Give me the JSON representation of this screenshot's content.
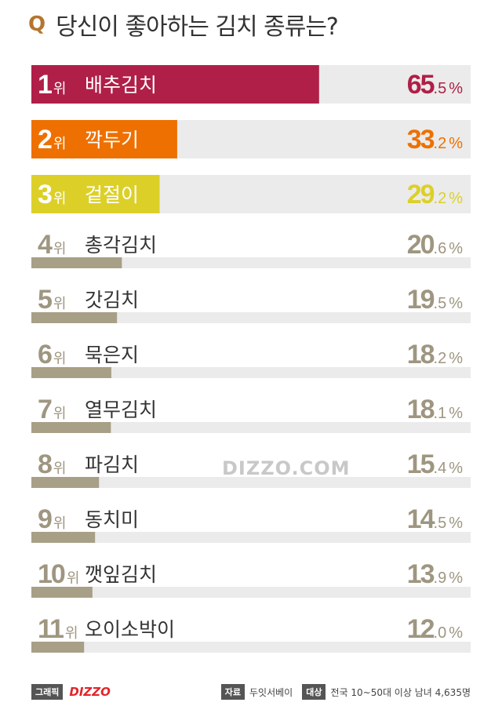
{
  "title": {
    "q": "Q",
    "text": "당신이 좋아하는 김치 종류는?"
  },
  "chart_data": {
    "type": "bar",
    "orientation": "horizontal",
    "unit": "%",
    "rank_suffix": "위",
    "xlim": [
      0,
      100
    ],
    "items": [
      {
        "rank": "1",
        "name": "배추김치",
        "int": "65",
        "dec": ".5",
        "value": 65.5,
        "color": "#b01f48",
        "style": "filled"
      },
      {
        "rank": "2",
        "name": "깍두기",
        "int": "33",
        "dec": ".2",
        "value": 33.2,
        "color": "#ee7000",
        "style": "filled"
      },
      {
        "rank": "3",
        "name": "겉절이",
        "int": "29",
        "dec": ".2",
        "value": 29.2,
        "color": "#dcd028",
        "style": "filled"
      },
      {
        "rank": "4",
        "name": "총각김치",
        "int": "20",
        "dec": ".6",
        "value": 20.6,
        "color": "#a89f87",
        "style": "thin"
      },
      {
        "rank": "5",
        "name": "갓김치",
        "int": "19",
        "dec": ".5",
        "value": 19.5,
        "color": "#a89f87",
        "style": "thin"
      },
      {
        "rank": "6",
        "name": "묵은지",
        "int": "18",
        "dec": ".2",
        "value": 18.2,
        "color": "#a89f87",
        "style": "thin"
      },
      {
        "rank": "7",
        "name": "열무김치",
        "int": "18",
        "dec": ".1",
        "value": 18.1,
        "color": "#a89f87",
        "style": "thin"
      },
      {
        "rank": "8",
        "name": "파김치",
        "int": "15",
        "dec": ".4",
        "value": 15.4,
        "color": "#a89f87",
        "style": "thin"
      },
      {
        "rank": "9",
        "name": "동치미",
        "int": "14",
        "dec": ".5",
        "value": 14.5,
        "color": "#a89f87",
        "style": "thin"
      },
      {
        "rank": "10",
        "name": "깻잎김치",
        "int": "13",
        "dec": ".9",
        "value": 13.9,
        "color": "#a89f87",
        "style": "thin"
      },
      {
        "rank": "11",
        "name": "오이소박이",
        "int": "12",
        "dec": ".0",
        "value": 12.0,
        "color": "#a89f87",
        "style": "thin"
      }
    ]
  },
  "watermark": "DIZZO.COM",
  "footer": {
    "graphic_label": "그래픽",
    "brand": "DIZZO",
    "source_label": "자료",
    "source": "두잇서베이",
    "target_label": "대상",
    "target": "전국 10~50대 이상 남녀 4,635명"
  },
  "colors": {
    "track": "#ebebeb",
    "text_dark": "#333333",
    "rank_gray": "#9e9680"
  }
}
